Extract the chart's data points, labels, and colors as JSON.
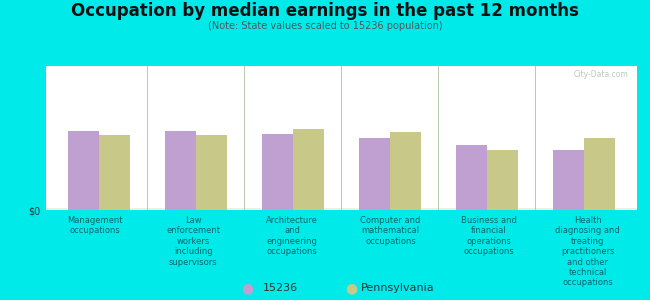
{
  "title": "Occupation by median earnings in the past 12 months",
  "subtitle": "(Note: State values scaled to 15236 population)",
  "background_color": "#00eaea",
  "plot_bg_top_color": "#ddeedd",
  "plot_bg_bottom_color": "#f0f5e8",
  "bar_color_15236": "#c0a0d0",
  "bar_color_pa": "#c8c888",
  "categories": [
    "Management\noccupations",
    "Law\nenforcement\nworkers\nincluding\nsupervisors",
    "Architecture\nand\nengineering\noccupations",
    "Computer and\nmathematical\noccupations",
    "Business and\nfinancial\noperations\noccupations",
    "Health\ndiagnosing and\ntreating\npractitioners\nand other\ntechnical\noccupations"
  ],
  "values_15236": [
    55,
    55,
    53,
    50,
    45,
    42
  ],
  "values_pa": [
    52,
    52,
    56,
    54,
    42,
    50
  ],
  "ylim": [
    0,
    100
  ],
  "ylabel": "$0",
  "legend_15236": "15236",
  "legend_pa": "Pennsylvania",
  "watermark": "City-Data.com",
  "title_fontsize": 12,
  "subtitle_fontsize": 7,
  "tick_fontsize": 6,
  "legend_fontsize": 8
}
